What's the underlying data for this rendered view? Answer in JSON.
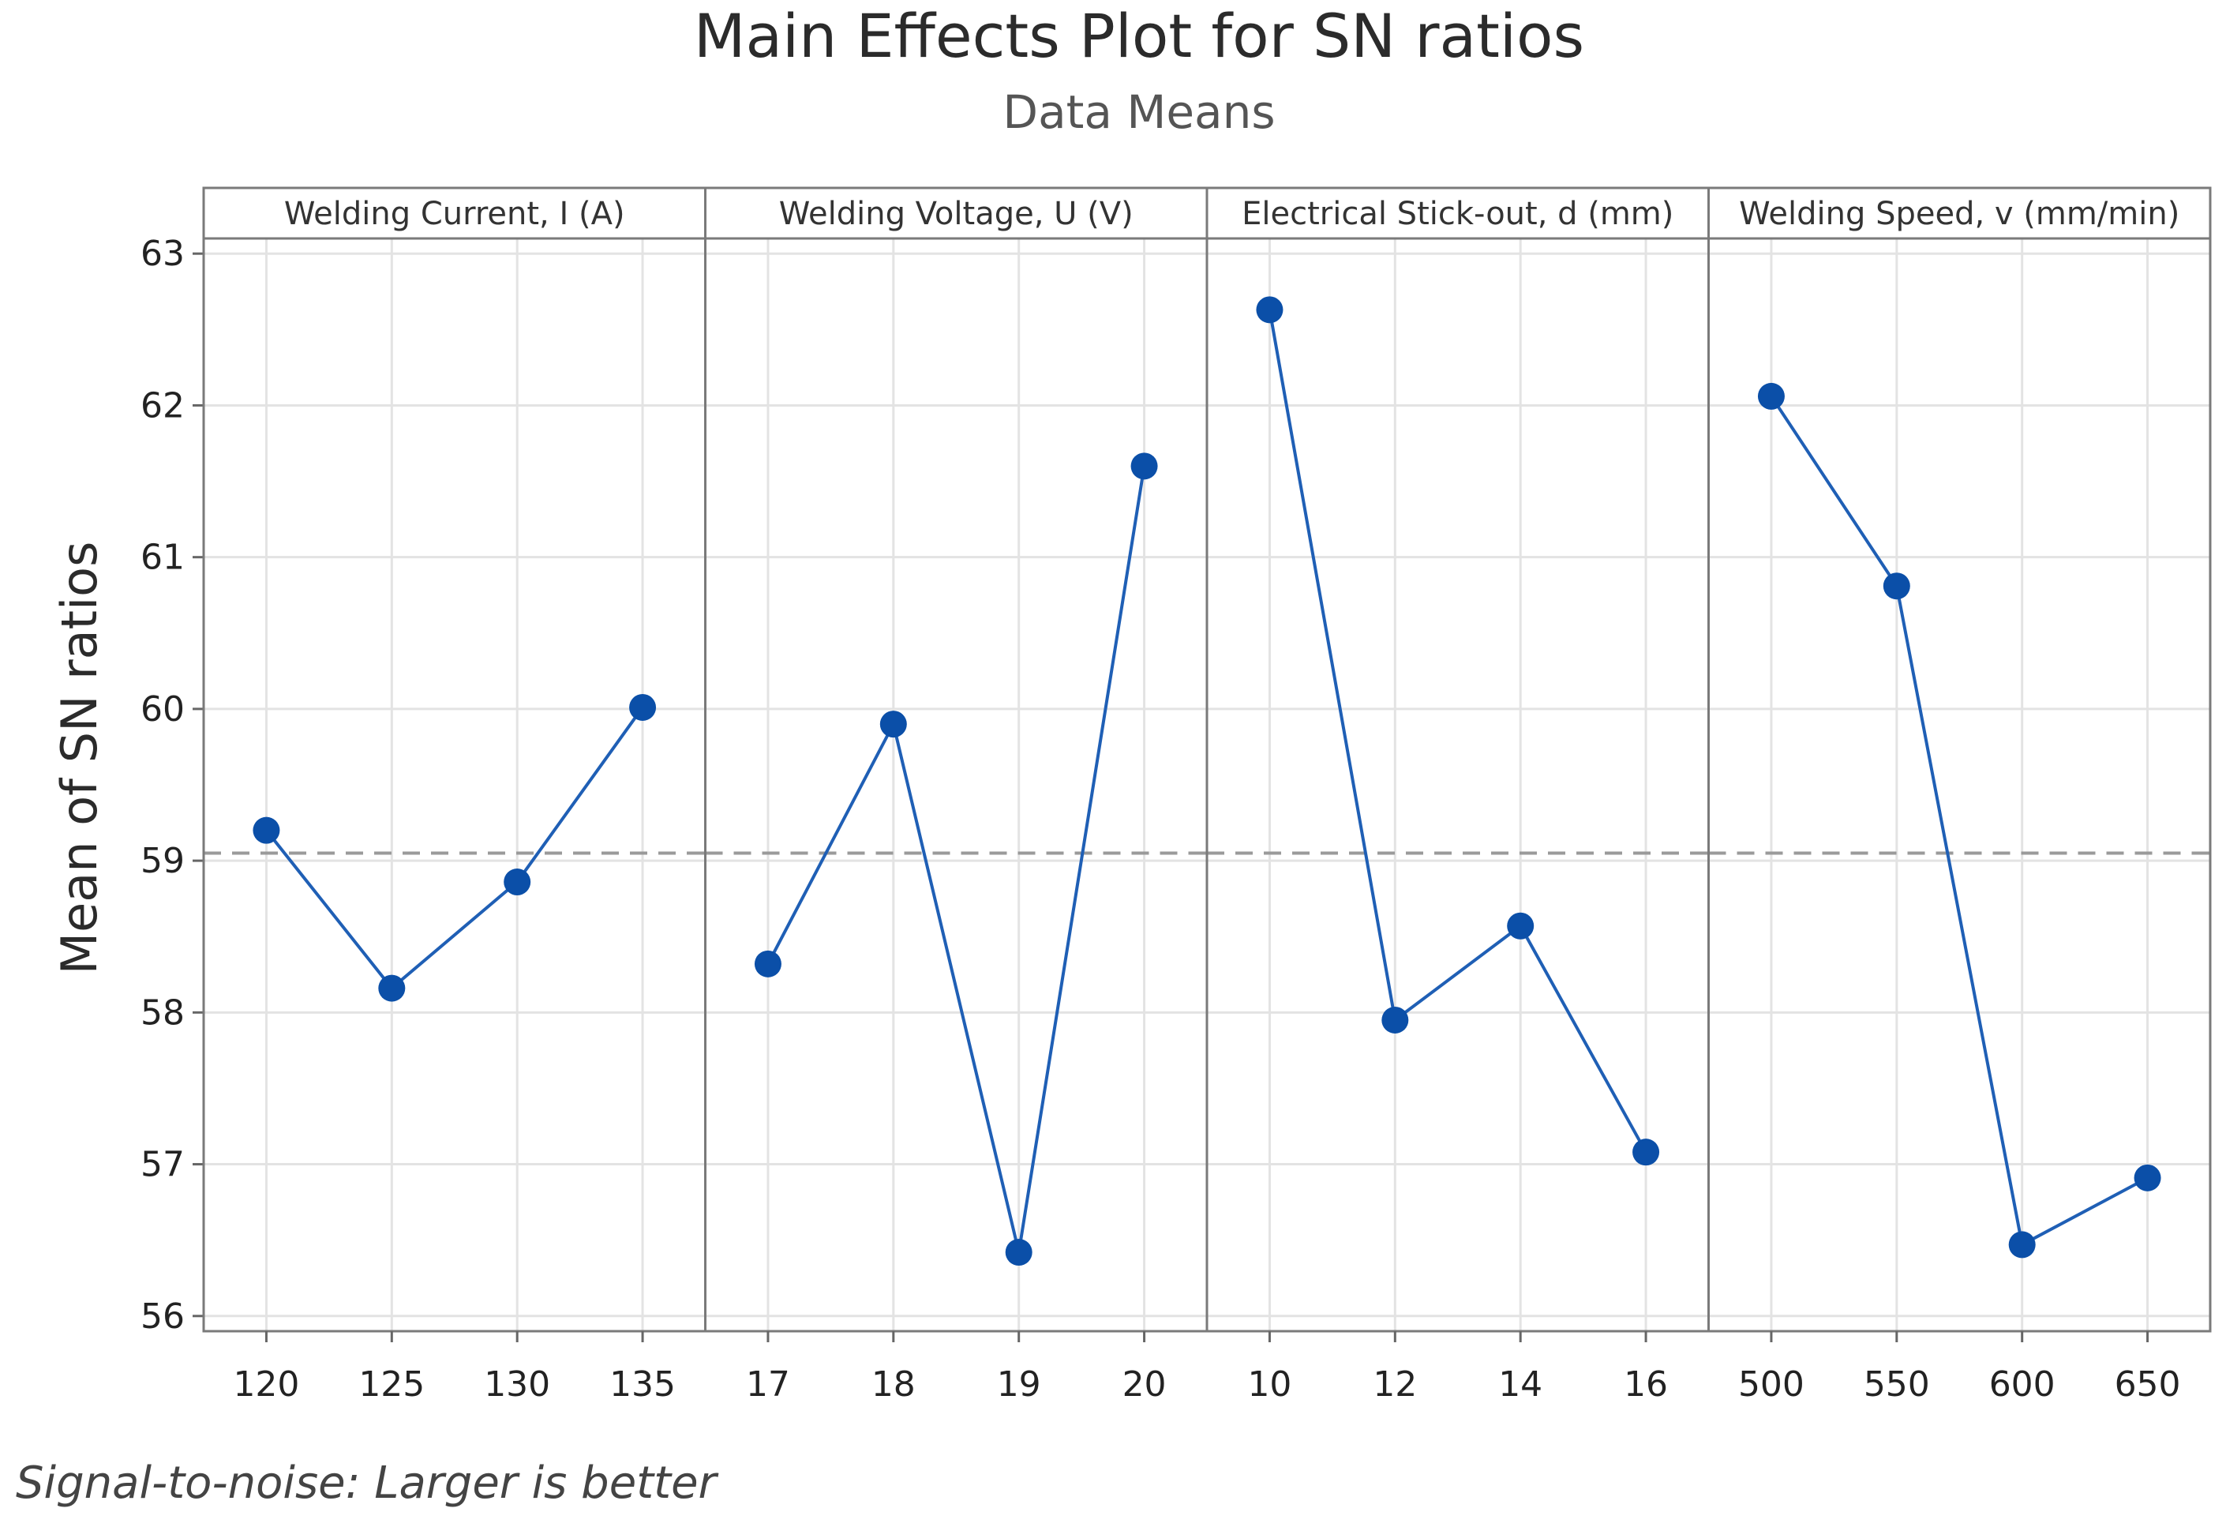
{
  "chart_data": {
    "type": "line",
    "title": "Main Effects Plot for SN ratios",
    "subtitle": "Data Means",
    "ylabel": "Mean of SN ratios",
    "footnote": "Signal-to-noise: Larger is better",
    "ylim": [
      55.9,
      63.1
    ],
    "yticks": [
      56,
      57,
      58,
      59,
      60,
      61,
      62,
      63
    ],
    "reference_line": 59.05,
    "grid": true,
    "line_color": "#1f5fb5",
    "marker_color": "#0b4fa8",
    "ref_line_color": "#9a9a9a",
    "panels": [
      {
        "name": "Welding Current, I (A)",
        "x": [
          "120",
          "125",
          "130",
          "135"
        ],
        "values": [
          59.2,
          58.16,
          58.86,
          60.01
        ]
      },
      {
        "name": "Welding Voltage, U (V)",
        "x": [
          "17",
          "18",
          "19",
          "20"
        ],
        "values": [
          58.32,
          59.9,
          56.42,
          61.6
        ]
      },
      {
        "name": "Electrical Stick-out, d (mm)",
        "x": [
          "10",
          "12",
          "14",
          "16"
        ],
        "values": [
          62.63,
          57.95,
          58.57,
          57.08
        ]
      },
      {
        "name": "Welding Speed, v (mm/min)",
        "x": [
          "500",
          "550",
          "600",
          "650"
        ],
        "values": [
          62.06,
          60.81,
          56.47,
          56.91
        ]
      }
    ]
  }
}
